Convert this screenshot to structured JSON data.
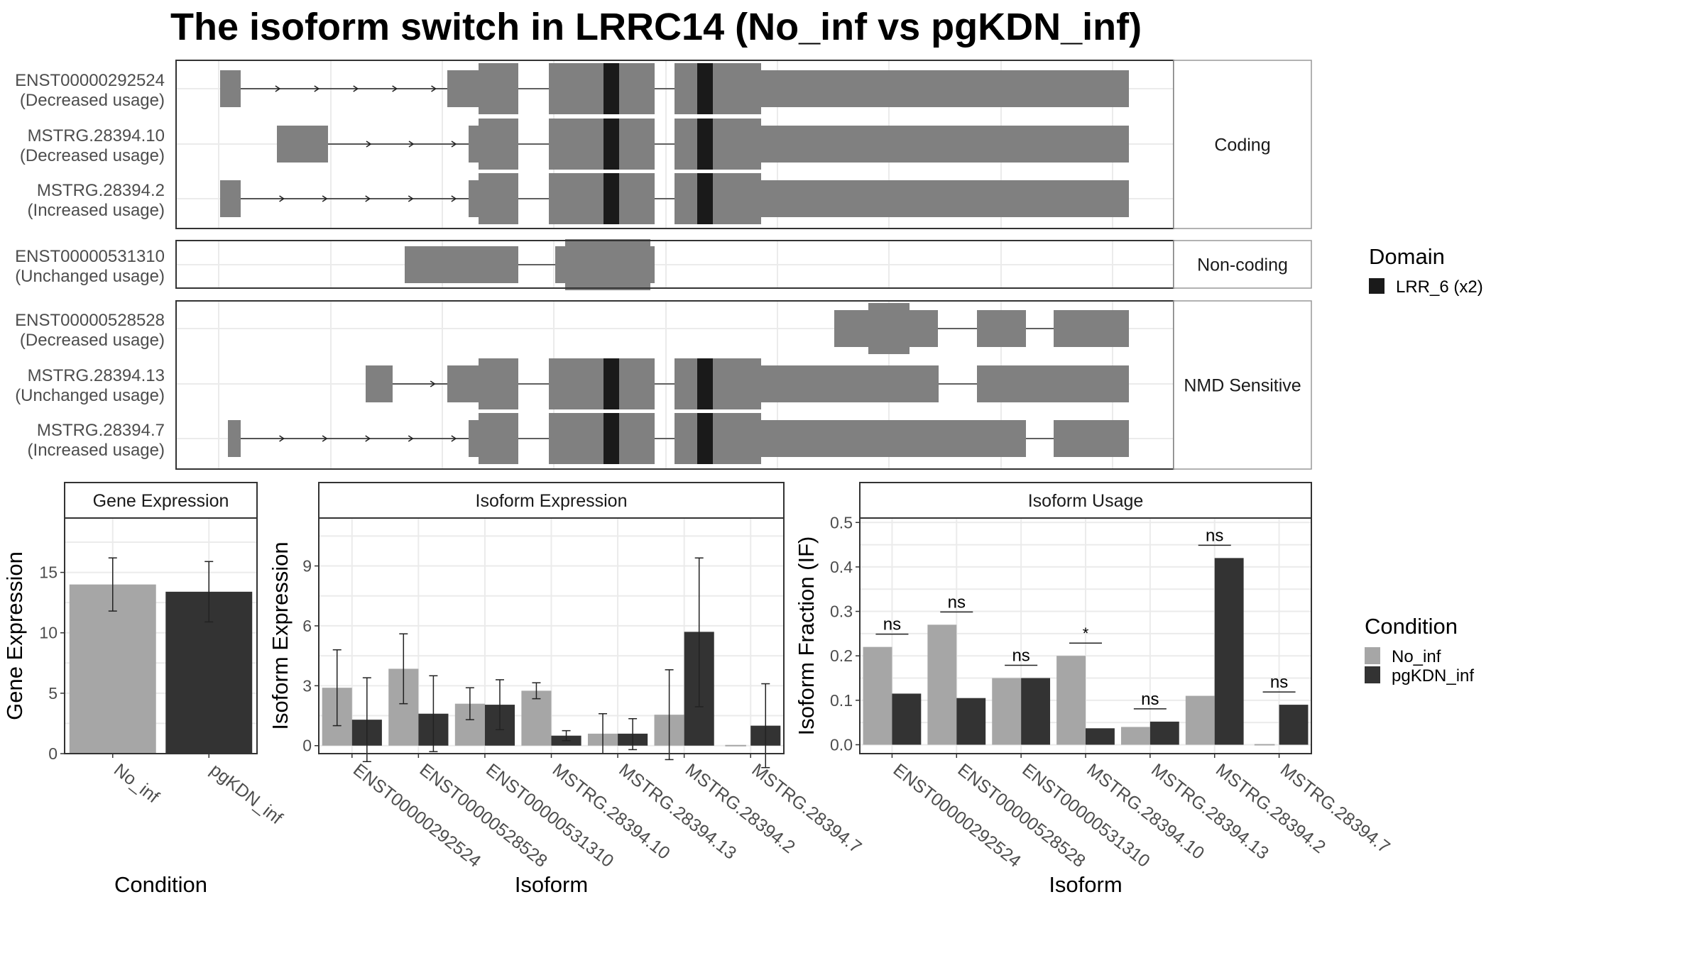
{
  "title": "The isoform switch in LRRC14 (No_inf vs pgKDN_inf)",
  "colors": {
    "exon": "#808080",
    "domain": "#1a1a1a",
    "no_inf": "#a6a6a6",
    "pgkdn_inf": "#333333",
    "grid": "#ebebeb",
    "strip_bg": "#ffffff"
  },
  "legends": {
    "domain": {
      "title": "Domain",
      "items": [
        {
          "label": "LRR_6 (x2)",
          "color": "#1a1a1a"
        }
      ]
    },
    "condition": {
      "title": "Condition",
      "items": [
        {
          "label": "No_inf",
          "color": "#a6a6a6"
        },
        {
          "label": "pgKDN_inf",
          "color": "#333333"
        }
      ]
    }
  },
  "chart_data": [
    {
      "type": "other",
      "name": "transcript structure",
      "groups": [
        {
          "label": "Coding",
          "isoforms": [
            {
              "id": "ENST00000292524",
              "status": "(Decreased usage)"
            },
            {
              "id": "MSTRG.28394.10",
              "status": "(Decreased usage)"
            },
            {
              "id": "MSTRG.28394.2",
              "status": "(Increased usage)"
            }
          ]
        },
        {
          "label": "Non-coding",
          "isoforms": [
            {
              "id": "ENST00000531310",
              "status": "(Unchanged usage)"
            }
          ]
        },
        {
          "label": "NMD Sensitive",
          "isoforms": [
            {
              "id": "ENST00000528528",
              "status": "(Decreased usage)"
            },
            {
              "id": "MSTRG.28394.13",
              "status": "(Unchanged usage)"
            },
            {
              "id": "MSTRG.28394.7",
              "status": "(Increased usage)"
            }
          ]
        }
      ]
    },
    {
      "type": "bar",
      "strip": "Gene Expression",
      "xlabel": "Condition",
      "ylabel": "Gene Expression",
      "ylim": [
        0,
        19.5
      ],
      "yticks": [
        0,
        5,
        10,
        15
      ],
      "categories": [
        "No_inf",
        "pgKDN_inf"
      ],
      "values": [
        14.0,
        13.4
      ],
      "err_low": [
        11.8,
        10.9
      ],
      "err_high": [
        16.2,
        15.9
      ]
    },
    {
      "type": "bar",
      "strip": "Isoform Expression",
      "xlabel": "Isoform",
      "ylabel": "Isoform Expression",
      "ylim": [
        -0.4,
        11.4
      ],
      "yticks": [
        0,
        3,
        6,
        9
      ],
      "categories": [
        "ENST00000292524",
        "ENST00000528528",
        "ENST00000531310",
        "MSTRG.28394.10",
        "MSTRG.28394.13",
        "MSTRG.28394.2",
        "MSTRG.28394.7"
      ],
      "series": [
        {
          "name": "No_inf",
          "values": [
            2.9,
            3.85,
            2.1,
            2.75,
            0.6,
            1.55,
            0.0
          ],
          "err_low": [
            1.0,
            2.1,
            1.3,
            2.35,
            -0.4,
            -0.7,
            0.0
          ],
          "err_high": [
            4.8,
            5.6,
            2.9,
            3.15,
            1.6,
            3.8,
            0.0
          ]
        },
        {
          "name": "pgKDN_inf",
          "values": [
            1.3,
            1.6,
            2.05,
            0.5,
            0.6,
            5.7,
            1.0
          ],
          "err_low": [
            -0.8,
            -0.3,
            0.8,
            0.25,
            -0.2,
            1.95,
            -1.1
          ],
          "err_high": [
            3.4,
            3.5,
            3.3,
            0.75,
            1.35,
            9.4,
            3.1
          ]
        }
      ]
    },
    {
      "type": "bar",
      "strip": "Isoform Usage",
      "xlabel": "Isoform",
      "ylabel": "Isoform Fraction (IF)",
      "ylim": [
        -0.02,
        0.51
      ],
      "yticks": [
        0.0,
        0.1,
        0.2,
        0.3,
        0.4,
        0.5
      ],
      "ytick_labels": [
        "0.0",
        "0.1",
        "0.2",
        "0.3",
        "0.4",
        "0.5"
      ],
      "categories": [
        "ENST00000292524",
        "ENST00000528528",
        "ENST00000531310",
        "MSTRG.28394.10",
        "MSTRG.28394.13",
        "MSTRG.28394.2",
        "MSTRG.28394.7"
      ],
      "series": [
        {
          "name": "No_inf",
          "values": [
            0.22,
            0.27,
            0.15,
            0.2,
            0.04,
            0.11,
            0.0
          ]
        },
        {
          "name": "pgKDN_inf",
          "values": [
            0.115,
            0.105,
            0.15,
            0.037,
            0.052,
            0.42,
            0.09
          ]
        }
      ],
      "annotations": [
        "ns",
        "ns",
        "ns",
        "*",
        "ns",
        "ns",
        "ns"
      ]
    }
  ]
}
